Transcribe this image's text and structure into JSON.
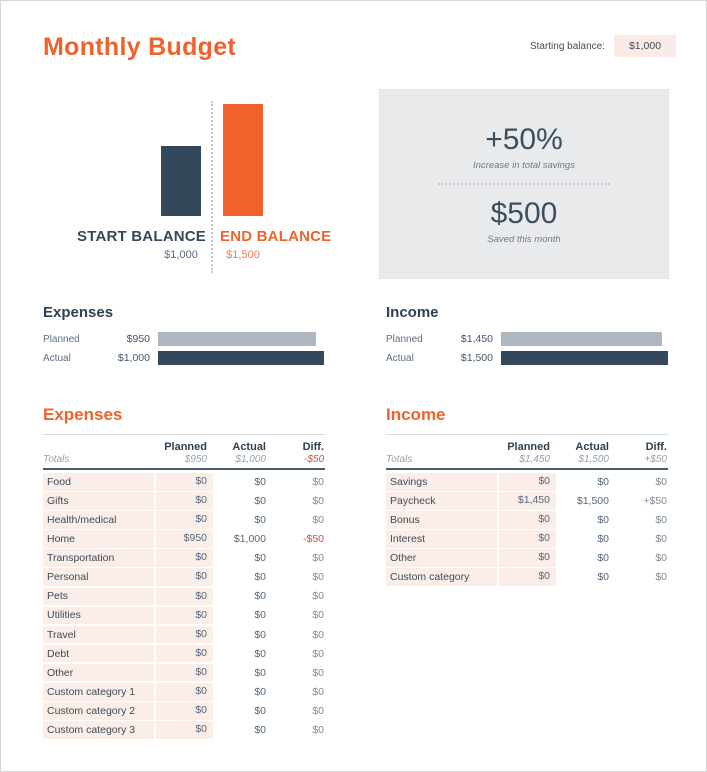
{
  "colors": {
    "accent_orange": "#F0622B",
    "navy": "#34485C",
    "bar_gray": "#AFB7C0",
    "panel_gray": "#E9EAEC",
    "cell_pink": "#FBEDE8",
    "negative_red": "#C0564A"
  },
  "header": {
    "title": "Monthly Budget",
    "starting_balance_label": "Starting balance:",
    "starting_balance_value": "$1,000"
  },
  "balance_chart": {
    "start": {
      "label": "START BALANCE",
      "value": "$1,000",
      "bar_pct": 62.5
    },
    "end": {
      "label": "END BALANCE",
      "value": "$1,500",
      "bar_pct": 100
    }
  },
  "savings_panel": {
    "percent": "+50%",
    "percent_caption": "Increase in total savings",
    "amount": "$500",
    "amount_caption": "Saved this month"
  },
  "expenses_summary": {
    "title": "Expenses",
    "rows": [
      {
        "label": "Planned",
        "value": "$950",
        "pct": 95,
        "kind": "planned"
      },
      {
        "label": "Actual",
        "value": "$1,000",
        "pct": 100,
        "kind": "actual"
      }
    ]
  },
  "income_summary": {
    "title": "Income",
    "rows": [
      {
        "label": "Planned",
        "value": "$1,450",
        "pct": 96.7,
        "kind": "planned"
      },
      {
        "label": "Actual",
        "value": "$1,500",
        "pct": 100,
        "kind": "actual"
      }
    ]
  },
  "expenses_table": {
    "title": "Expenses",
    "columns": {
      "planned": "Planned",
      "actual": "Actual",
      "diff": "Diff."
    },
    "totals": {
      "label": "Totals",
      "planned": "$950",
      "actual": "$1,000",
      "diff": "-$50"
    },
    "rows": [
      {
        "name": "Food",
        "planned": "$0",
        "actual": "$0",
        "diff": "$0"
      },
      {
        "name": "Gifts",
        "planned": "$0",
        "actual": "$0",
        "diff": "$0"
      },
      {
        "name": "Health/medical",
        "planned": "$0",
        "actual": "$0",
        "diff": "$0"
      },
      {
        "name": "Home",
        "planned": "$950",
        "actual": "$1,000",
        "diff": "-$50"
      },
      {
        "name": "Transportation",
        "planned": "$0",
        "actual": "$0",
        "diff": "$0"
      },
      {
        "name": "Personal",
        "planned": "$0",
        "actual": "$0",
        "diff": "$0"
      },
      {
        "name": "Pets",
        "planned": "$0",
        "actual": "$0",
        "diff": "$0"
      },
      {
        "name": "Utilities",
        "planned": "$0",
        "actual": "$0",
        "diff": "$0"
      },
      {
        "name": "Travel",
        "planned": "$0",
        "actual": "$0",
        "diff": "$0"
      },
      {
        "name": "Debt",
        "planned": "$0",
        "actual": "$0",
        "diff": "$0"
      },
      {
        "name": "Other",
        "planned": "$0",
        "actual": "$0",
        "diff": "$0"
      },
      {
        "name": "Custom category 1",
        "planned": "$0",
        "actual": "$0",
        "diff": "$0"
      },
      {
        "name": "Custom category 2",
        "planned": "$0",
        "actual": "$0",
        "diff": "$0"
      },
      {
        "name": "Custom category 3",
        "planned": "$0",
        "actual": "$0",
        "diff": "$0"
      }
    ]
  },
  "income_table": {
    "title": "Income",
    "columns": {
      "planned": "Planned",
      "actual": "Actual",
      "diff": "Diff."
    },
    "totals": {
      "label": "Totals",
      "planned": "$1,450",
      "actual": "$1,500",
      "diff": "+$50"
    },
    "rows": [
      {
        "name": "Savings",
        "planned": "$0",
        "actual": "$0",
        "diff": "$0"
      },
      {
        "name": "Paycheck",
        "planned": "$1,450",
        "actual": "$1,500",
        "diff": "+$50"
      },
      {
        "name": "Bonus",
        "planned": "$0",
        "actual": "$0",
        "diff": "$0"
      },
      {
        "name": "Interest",
        "planned": "$0",
        "actual": "$0",
        "diff": "$0"
      },
      {
        "name": "Other",
        "planned": "$0",
        "actual": "$0",
        "diff": "$0"
      },
      {
        "name": "Custom category",
        "planned": "$0",
        "actual": "$0",
        "diff": "$0"
      }
    ]
  }
}
